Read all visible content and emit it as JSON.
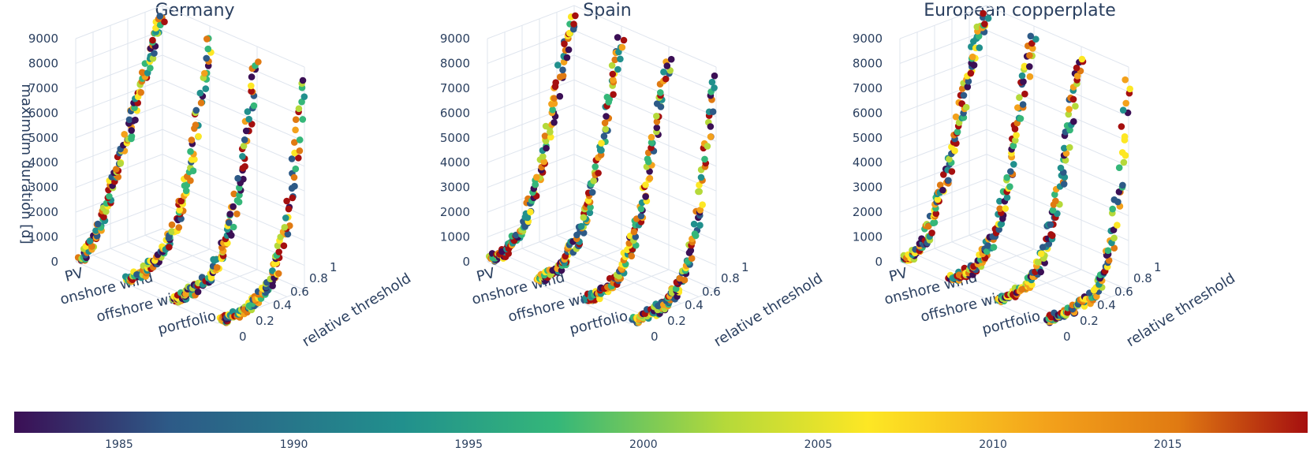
{
  "colors": {
    "viridis_like": [
      "#3b0f55",
      "#2d5a87",
      "#21908d",
      "#35b779",
      "#b5d93a",
      "#fde724",
      "#f3a11b",
      "#e07a12",
      "#a50f0f"
    ],
    "grid": "#dfe5ee",
    "text": "#2a3f5f"
  },
  "chart_data": [
    {
      "type": "scatter",
      "title": "Germany",
      "zlabel": "maximum duration [d]",
      "xlabel": "relative threshold",
      "z_ticks": [
        "0",
        "1000",
        "2000",
        "3000",
        "4000",
        "5000",
        "6000",
        "7000",
        "8000",
        "9000"
      ],
      "x_ticks": [
        "0",
        "0.2",
        "0.4",
        "0.6",
        "0.8",
        "1"
      ],
      "categories": [
        "PV",
        "onshore wind",
        "offshore wind",
        "portfolio"
      ],
      "zlim": [
        0,
        9000
      ],
      "xlim": [
        0,
        1
      ],
      "series": [
        {
          "category": "PV",
          "x": [
            0.1,
            0.2,
            0.3,
            0.4,
            0.5,
            0.6,
            0.7,
            0.8,
            0.9,
            1.0
          ],
          "z": [
            100,
            500,
            1300,
            2300,
            3300,
            4300,
            5400,
            6600,
            7800,
            8600
          ]
        },
        {
          "category": "onshore wind",
          "x": [
            0.1,
            0.2,
            0.3,
            0.4,
            0.5,
            0.6,
            0.7,
            0.8,
            0.9,
            1.0
          ],
          "z": [
            50,
            100,
            200,
            400,
            800,
            1500,
            2500,
            4000,
            6200,
            8600
          ]
        },
        {
          "category": "offshore wind",
          "x": [
            0.1,
            0.2,
            0.3,
            0.4,
            0.5,
            0.6,
            0.7,
            0.8,
            0.9,
            1.0
          ],
          "z": [
            50,
            100,
            200,
            350,
            700,
            1300,
            2300,
            3800,
            6000,
            8600
          ]
        },
        {
          "category": "portfolio",
          "x": [
            0.1,
            0.2,
            0.3,
            0.4,
            0.5,
            0.6,
            0.7,
            0.8,
            0.9,
            1.0
          ],
          "z": [
            0,
            50,
            100,
            200,
            400,
            800,
            1600,
            3000,
            5500,
            8600
          ]
        }
      ]
    },
    {
      "type": "scatter",
      "title": "Spain",
      "zlabel": "",
      "xlabel": "relative threshold",
      "z_ticks": [
        "0",
        "1000",
        "2000",
        "3000",
        "4000",
        "5000",
        "6000",
        "7000",
        "8000",
        "9000"
      ],
      "x_ticks": [
        "0",
        "0.2",
        "0.4",
        "0.6",
        "0.8",
        "1"
      ],
      "categories": [
        "PV",
        "onshore wind",
        "offshore wind",
        "portfolio"
      ],
      "zlim": [
        0,
        9000
      ],
      "xlim": [
        0,
        1
      ],
      "series": [
        {
          "category": "PV",
          "x": [
            0.1,
            0.2,
            0.3,
            0.4,
            0.5,
            0.6,
            0.7,
            0.8,
            0.9,
            1.0
          ],
          "z": [
            50,
            150,
            400,
            900,
            1700,
            2800,
            4200,
            5800,
            7500,
            8600
          ]
        },
        {
          "category": "onshore wind",
          "x": [
            0.1,
            0.2,
            0.3,
            0.4,
            0.5,
            0.6,
            0.7,
            0.8,
            0.9,
            1.0
          ],
          "z": [
            50,
            100,
            300,
            600,
            1100,
            2000,
            3300,
            5000,
            7000,
            8600
          ]
        },
        {
          "category": "offshore wind",
          "x": [
            0.1,
            0.2,
            0.3,
            0.4,
            0.5,
            0.6,
            0.7,
            0.8,
            0.9,
            1.0
          ],
          "z": [
            50,
            100,
            250,
            500,
            1000,
            1800,
            3000,
            4800,
            6800,
            8600
          ]
        },
        {
          "category": "portfolio",
          "x": [
            0.1,
            0.2,
            0.3,
            0.4,
            0.5,
            0.6,
            0.7,
            0.8,
            0.9,
            1.0
          ],
          "z": [
            0,
            50,
            100,
            200,
            450,
            900,
            1800,
            3400,
            6000,
            8600
          ]
        }
      ]
    },
    {
      "type": "scatter",
      "title": "European copperplate",
      "zlabel": "",
      "xlabel": "relative threshold",
      "z_ticks": [
        "0",
        "1000",
        "2000",
        "3000",
        "4000",
        "5000",
        "6000",
        "7000",
        "8000",
        "9000"
      ],
      "x_ticks": [
        "0",
        "0.2",
        "0.4",
        "0.6",
        "0.8",
        "1"
      ],
      "categories": [
        "PV",
        "onshore wind",
        "offshore wind",
        "portfolio"
      ],
      "zlim": [
        0,
        9000
      ],
      "xlim": [
        0,
        1
      ],
      "series": [
        {
          "category": "PV",
          "x": [
            0.1,
            0.2,
            0.3,
            0.4,
            0.5,
            0.6,
            0.7,
            0.8,
            0.9,
            1.0
          ],
          "z": [
            50,
            200,
            600,
            1300,
            2300,
            3600,
            5000,
            6500,
            7900,
            8600
          ]
        },
        {
          "category": "onshore wind",
          "x": [
            0.1,
            0.2,
            0.3,
            0.4,
            0.5,
            0.6,
            0.7,
            0.8,
            0.9,
            1.0
          ],
          "z": [
            20,
            50,
            150,
            400,
            900,
            1800,
            3200,
            5000,
            7000,
            8600
          ]
        },
        {
          "category": "offshore wind",
          "x": [
            0.1,
            0.2,
            0.3,
            0.4,
            0.5,
            0.6,
            0.7,
            0.8,
            0.9,
            1.0
          ],
          "z": [
            20,
            50,
            120,
            300,
            700,
            1500,
            2800,
            4600,
            6800,
            8600
          ]
        },
        {
          "category": "portfolio",
          "x": [
            0.1,
            0.2,
            0.3,
            0.4,
            0.5,
            0.6,
            0.7,
            0.8,
            0.9,
            1.0
          ],
          "z": [
            0,
            20,
            50,
            100,
            200,
            400,
            900,
            2000,
            4500,
            8600
          ]
        }
      ]
    }
  ],
  "colorbar": {
    "ticks": [
      "1985",
      "1990",
      "1995",
      "2000",
      "2005",
      "2010",
      "2015"
    ],
    "min_year": 1982,
    "max_year": 2019
  }
}
